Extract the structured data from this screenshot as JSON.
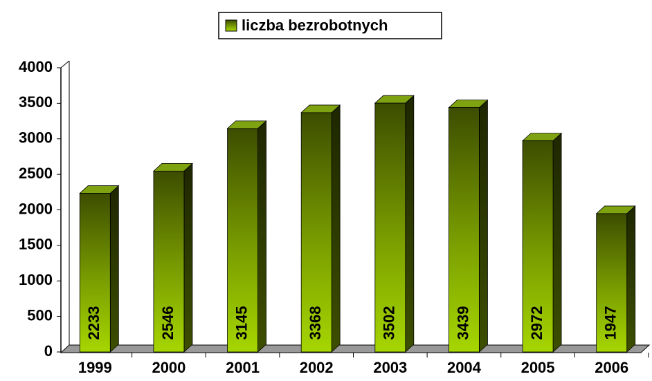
{
  "chart_data": {
    "type": "bar",
    "series": [
      {
        "name": "liczba bezrobotnych",
        "color": "#99cc00",
        "values": [
          2233,
          2546,
          3145,
          3368,
          3502,
          3439,
          2972,
          1947
        ]
      }
    ],
    "categories": [
      "1999",
      "2000",
      "2001",
      "2002",
      "2003",
      "2004",
      "2005",
      "2006"
    ],
    "ylim": [
      0,
      4000
    ],
    "yticks": [
      0,
      500,
      1000,
      1500,
      2000,
      2500,
      3000,
      3500,
      4000
    ],
    "legend": "top"
  }
}
